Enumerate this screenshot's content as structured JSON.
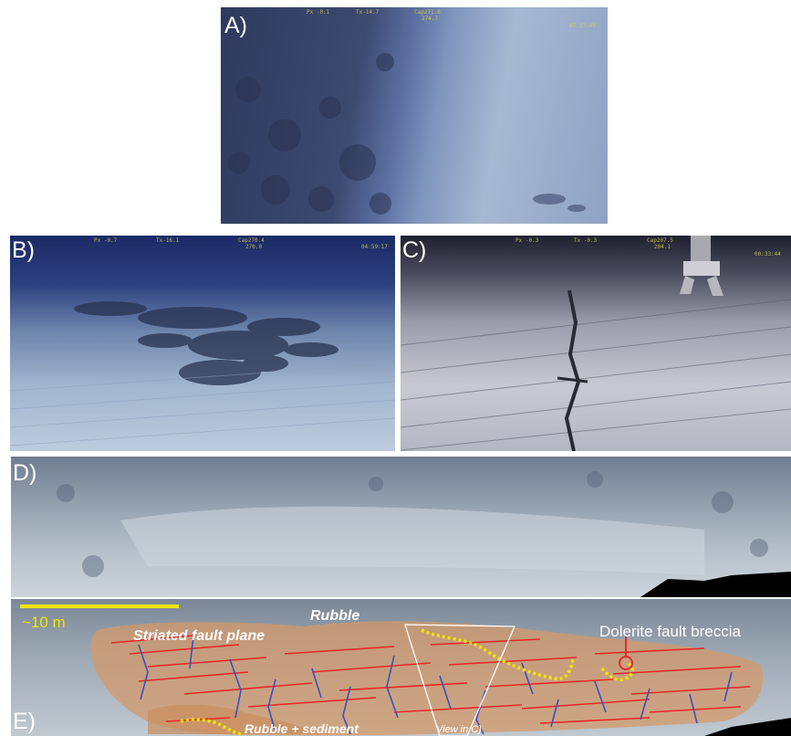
{
  "panels": {
    "a": {
      "label": "A)"
    },
    "b": {
      "label": "B)"
    },
    "c": {
      "label": "C)"
    },
    "d": {
      "label": "D)"
    },
    "e": {
      "label": "E)"
    }
  },
  "annotations": {
    "scale_bar": "~10 m",
    "rubble": "Rubble",
    "striated_fault_plane": "Striated fault plane",
    "dolerite_fault_breccia": "Dolerite fault breccia",
    "rubble_sediment": "Rubble + sediment",
    "view_in_c": "View in C)"
  },
  "hud": {
    "a": {
      "pitch": "Px -0.1",
      "tilt": "Tx-14.7",
      "cap": "Cap271.8",
      "heading": "274.7",
      "clock": "07:33:49"
    },
    "b": {
      "pitch": "Px -0.7",
      "tilt": "Tx-16.1",
      "cap": "Cap270.4",
      "heading": "270.0",
      "clock": "04:59:17"
    },
    "c": {
      "pitch": "Px -0.3",
      "tilt": "Tx -0.3",
      "cap": "Cap207.5",
      "heading": "204.1",
      "clock": "00:33:44"
    }
  },
  "colors": {
    "scale_bar": "#f2e600",
    "breccia_trace": "#f2e600",
    "striations": "#e8282a",
    "fractures": "#3a4fc0",
    "fault_plane_fill": "#d39a6a",
    "label_white": "#ffffff",
    "breccia_marker": "#e8282a"
  }
}
